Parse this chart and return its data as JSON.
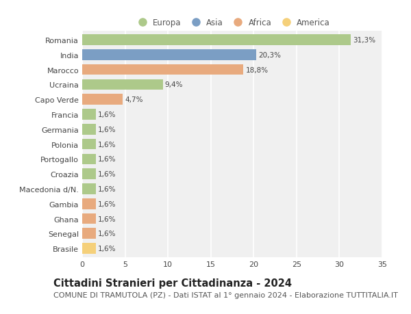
{
  "countries": [
    "Romania",
    "India",
    "Marocco",
    "Ucraina",
    "Capo Verde",
    "Francia",
    "Germania",
    "Polonia",
    "Portogallo",
    "Croazia",
    "Macedonia d/N.",
    "Gambia",
    "Ghana",
    "Senegal",
    "Brasile"
  ],
  "values": [
    31.3,
    20.3,
    18.8,
    9.4,
    4.7,
    1.6,
    1.6,
    1.6,
    1.6,
    1.6,
    1.6,
    1.6,
    1.6,
    1.6,
    1.6
  ],
  "labels": [
    "31,3%",
    "20,3%",
    "18,8%",
    "9,4%",
    "4,7%",
    "1,6%",
    "1,6%",
    "1,6%",
    "1,6%",
    "1,6%",
    "1,6%",
    "1,6%",
    "1,6%",
    "1,6%",
    "1,6%"
  ],
  "continents": [
    "Europa",
    "Asia",
    "Africa",
    "Europa",
    "Africa",
    "Europa",
    "Europa",
    "Europa",
    "Europa",
    "Europa",
    "Europa",
    "Africa",
    "Africa",
    "Africa",
    "America"
  ],
  "continent_colors": {
    "Europa": "#adc98a",
    "Asia": "#7b9ec4",
    "Africa": "#e8aa7e",
    "America": "#f5d07a"
  },
  "legend_order": [
    "Europa",
    "Asia",
    "Africa",
    "America"
  ],
  "xlim": [
    0,
    35
  ],
  "xticks": [
    0,
    5,
    10,
    15,
    20,
    25,
    30,
    35
  ],
  "title": "Cittadini Stranieri per Cittadinanza - 2024",
  "subtitle": "COMUNE DI TRAMUTOLA (PZ) - Dati ISTAT al 1° gennaio 2024 - Elaborazione TUTTITALIA.IT",
  "background_color": "#ffffff",
  "plot_bg_color": "#f0f0f0",
  "grid_color": "#ffffff",
  "bar_height": 0.72,
  "title_fontsize": 10.5,
  "subtitle_fontsize": 8,
  "label_fontsize": 7.5,
  "tick_fontsize": 8,
  "legend_fontsize": 8.5
}
